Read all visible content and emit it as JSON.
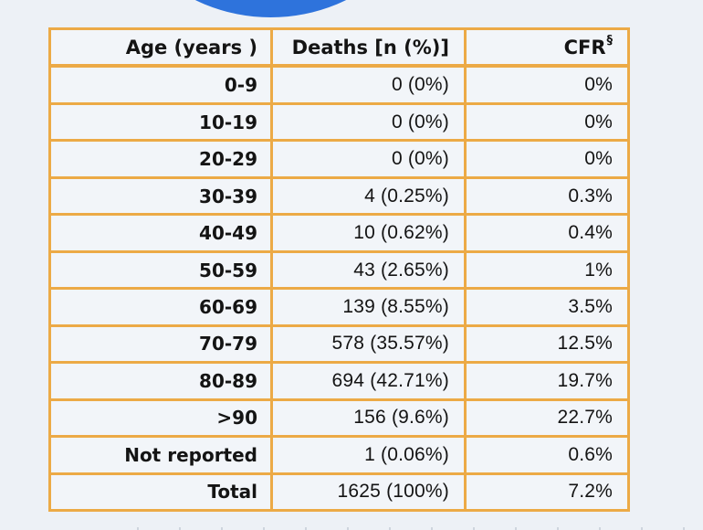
{
  "page": {
    "colors": {
      "bg": "#edf1f6",
      "cell": "#f2f5f9",
      "orange": "#ecaa46",
      "blue": "#2e73dc",
      "ink": "#141414"
    }
  },
  "table": {
    "header": {
      "age_label": "Age (years )",
      "deaths_label": "Deaths [n (%)]",
      "cfr_label": "CFR",
      "cfr_superscript": "§"
    },
    "rows": [
      {
        "age": "0-9",
        "deaths": "0 (0%)",
        "cfr": "0%"
      },
      {
        "age": "10-19",
        "deaths": "0 (0%)",
        "cfr": "0%"
      },
      {
        "age": "20-29",
        "deaths": "0 (0%)",
        "cfr": "0%"
      },
      {
        "age": "30-39",
        "deaths": "4 (0.25%)",
        "cfr": "0.3%"
      },
      {
        "age": "40-49",
        "deaths": "10 (0.62%)",
        "cfr": "0.4%"
      },
      {
        "age": "50-59",
        "deaths": "43 (2.65%)",
        "cfr": "1%"
      },
      {
        "age": "60-69",
        "deaths": "139 (8.55%)",
        "cfr": "3.5%"
      },
      {
        "age": "70-79",
        "deaths": "578 (35.57%)",
        "cfr": "12.5%"
      },
      {
        "age": "80-89",
        "deaths": "694 (42.71%)",
        "cfr": "19.7%"
      },
      {
        "age": ">90",
        "deaths": "156 (9.6%)",
        "cfr": "22.7%"
      },
      {
        "age": "Not reported",
        "deaths": "1 (0.06%)",
        "cfr": "0.6%"
      },
      {
        "age": "Total",
        "deaths": "1625 (100%)",
        "cfr": "7.2%"
      }
    ]
  },
  "chart_data": {
    "type": "table",
    "title": "",
    "columns": [
      "Age (years)",
      "Deaths [n (%)]",
      "CFR§"
    ],
    "categories": [
      "0-9",
      "10-19",
      "20-29",
      "30-39",
      "40-49",
      "50-59",
      "60-69",
      "70-79",
      "80-89",
      ">90",
      "Not reported",
      "Total"
    ],
    "series": [
      {
        "name": "Deaths n",
        "values": [
          0,
          0,
          0,
          4,
          10,
          43,
          139,
          578,
          694,
          156,
          1,
          1625
        ]
      },
      {
        "name": "Deaths % of all",
        "values": [
          0,
          0,
          0,
          0.25,
          0.62,
          2.65,
          8.55,
          35.57,
          42.71,
          9.6,
          0.06,
          100
        ]
      },
      {
        "name": "CFR %",
        "values": [
          0,
          0,
          0,
          0.3,
          0.4,
          1,
          3.5,
          12.5,
          19.7,
          22.7,
          0.6,
          7.2
        ]
      }
    ],
    "legend_position": "none",
    "grid": true
  }
}
